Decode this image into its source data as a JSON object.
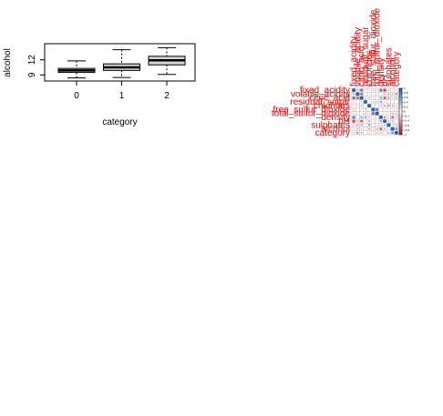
{
  "colors": {
    "label": "#ff0000",
    "positive": "#2166ac",
    "negative": "#b2182b",
    "grid": "#c8a8a8",
    "box_fill": "#d3d3d3"
  },
  "chart_data": [
    {
      "type": "boxplot",
      "xlabel": "category",
      "ylabel": "alcohol",
      "categories": [
        "0",
        "1",
        "2"
      ],
      "y_ticks": [
        "9",
        "12"
      ],
      "ylim": [
        7.8,
        15.2
      ],
      "boxes": [
        {
          "category": "0",
          "min": 8.4,
          "q1": 9.5,
          "median": 9.9,
          "q3": 10.3,
          "max": 11.8
        },
        {
          "category": "1",
          "min": 8.5,
          "q1": 9.9,
          "median": 10.5,
          "q3": 11.2,
          "max": 14.0
        },
        {
          "category": "2",
          "min": 9.1,
          "q1": 11.0,
          "median": 11.9,
          "q3": 12.7,
          "max": 14.4
        }
      ]
    },
    {
      "type": "heatmap",
      "variables": [
        "fixed_acidity",
        "volatile_acidity",
        "citric_acid",
        "residual_sugar",
        "chlorides",
        "free_sulfur_dioxide",
        "total_sulfur_dioxide",
        "density",
        "pH",
        "sulphates",
        "alcohol",
        "category"
      ],
      "matrix": [
        [
          1.0,
          -0.26,
          0.67,
          0.11,
          0.09,
          -0.15,
          -0.11,
          0.67,
          -0.68,
          0.18,
          -0.06,
          0.12
        ],
        [
          -0.26,
          1.0,
          -0.55,
          0.0,
          0.06,
          -0.01,
          0.08,
          0.02,
          0.23,
          -0.26,
          -0.2,
          -0.35
        ],
        [
          0.67,
          -0.55,
          1.0,
          0.14,
          0.2,
          -0.06,
          0.04,
          0.36,
          -0.54,
          0.31,
          0.11,
          0.23
        ],
        [
          0.11,
          0.0,
          0.14,
          1.0,
          0.06,
          0.19,
          0.2,
          0.36,
          -0.09,
          0.01,
          0.04,
          0.01
        ],
        [
          0.09,
          0.06,
          0.2,
          0.06,
          1.0,
          0.01,
          0.05,
          0.2,
          -0.27,
          0.37,
          -0.22,
          -0.13
        ],
        [
          -0.15,
          -0.01,
          -0.06,
          0.19,
          0.01,
          1.0,
          0.67,
          -0.02,
          0.07,
          0.05,
          -0.07,
          -0.05
        ],
        [
          -0.11,
          0.08,
          0.04,
          0.2,
          0.05,
          0.67,
          1.0,
          0.07,
          -0.07,
          0.04,
          -0.21,
          -0.19
        ],
        [
          0.67,
          0.02,
          0.36,
          0.36,
          0.2,
          -0.02,
          0.07,
          1.0,
          -0.34,
          0.15,
          -0.5,
          -0.17
        ],
        [
          -0.68,
          0.23,
          -0.54,
          -0.09,
          -0.27,
          0.07,
          -0.07,
          -0.34,
          1.0,
          -0.2,
          0.21,
          -0.05
        ],
        [
          0.18,
          -0.26,
          0.31,
          0.01,
          0.37,
          0.05,
          0.04,
          0.15,
          -0.2,
          1.0,
          0.09,
          0.25
        ],
        [
          -0.06,
          -0.2,
          0.11,
          0.04,
          -0.22,
          -0.07,
          -0.21,
          -0.5,
          0.21,
          0.09,
          1.0,
          0.48
        ],
        [
          0.12,
          -0.35,
          0.23,
          0.01,
          -0.13,
          -0.05,
          -0.19,
          -0.17,
          -0.05,
          0.25,
          0.48,
          1.0
        ]
      ],
      "colorbar_ticks": [
        "1",
        "0.8",
        "0.6",
        "0.4",
        "0.2",
        "0",
        "-0.2",
        "-0.4",
        "-0.6",
        "-0.8",
        "-1"
      ]
    }
  ]
}
